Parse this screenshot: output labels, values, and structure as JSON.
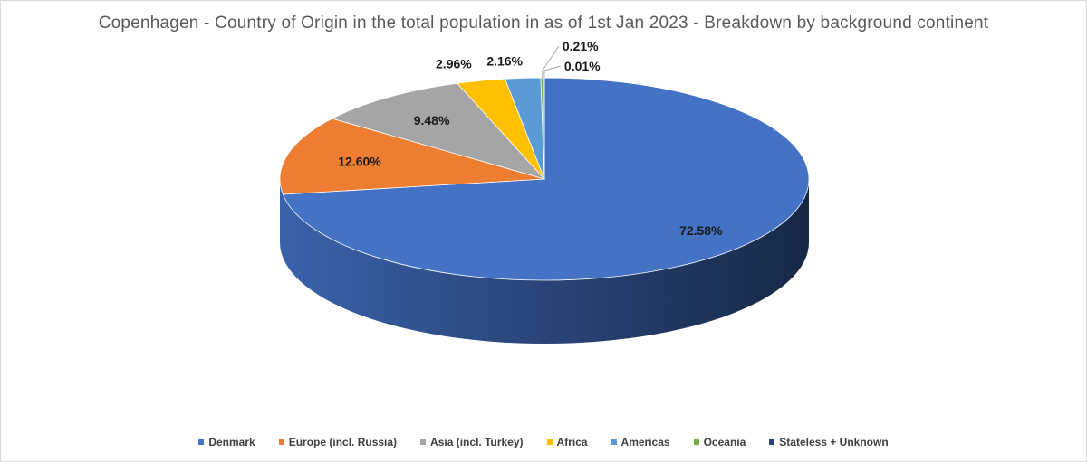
{
  "chart_data": {
    "type": "pie",
    "title": "Copenhagen - Country of Origin in the total population in as of 1st Jan 2023 - Breakdown by background continent",
    "categories": [
      "Denmark",
      "Europe (incl. Russia)",
      "Asia (incl. Turkey)",
      "Africa",
      "Americas",
      "Oceania",
      "Stateless + Unknown"
    ],
    "values": [
      72.58,
      12.6,
      9.48,
      2.96,
      2.16,
      0.21,
      0.01
    ],
    "labels": [
      "72.58%",
      "12.60%",
      "9.48%",
      "2.96%",
      "2.16%",
      "0.21%",
      "0.01%"
    ],
    "colors": [
      "#4472c4",
      "#ed7d31",
      "#a5a5a5",
      "#ffc000",
      "#5b9bd5",
      "#70ad47",
      "#264478"
    ],
    "style": "3d",
    "legend_position": "bottom"
  }
}
